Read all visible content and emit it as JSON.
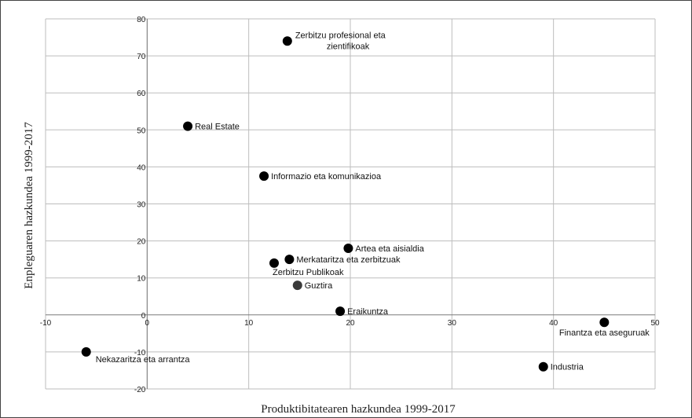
{
  "chart_data": {
    "type": "scatter",
    "xlabel": "Produktibitatearen hazkundea 1999-2017",
    "ylabel": "Enpleguaren hazkundea 1999-2017",
    "xlim": [
      -10,
      50
    ],
    "ylim": [
      -20,
      80
    ],
    "xticks": [
      -10,
      0,
      10,
      20,
      30,
      40,
      50
    ],
    "yticks": [
      -20,
      -10,
      0,
      10,
      20,
      30,
      40,
      50,
      60,
      70,
      80
    ],
    "grid": true,
    "colors": {
      "point": "#000000",
      "total_point": "#3a3a3a",
      "grid": "#bdbdbd"
    },
    "points": [
      {
        "label_lines": [
          "Zerbitzu profesional eta",
          "zientifikoak"
        ],
        "x": 13.8,
        "y": 74
      },
      {
        "label_lines": [
          "Real Estate"
        ],
        "x": 4,
        "y": 51
      },
      {
        "label_lines": [
          "Informazio eta komunikazioa"
        ],
        "x": 11.5,
        "y": 37.5
      },
      {
        "label_lines": [
          "Artea eta aisialdia"
        ],
        "x": 19.8,
        "y": 18
      },
      {
        "label_lines": [
          "Merkataritza eta zerbitzuak"
        ],
        "x": 14,
        "y": 15
      },
      {
        "label_lines": [
          "Zerbitzu Publikoak"
        ],
        "x": 12.5,
        "y": 14
      },
      {
        "label_lines": [
          "Guztira"
        ],
        "x": 14.8,
        "y": 8,
        "total": true
      },
      {
        "label_lines": [
          "Eraikuntza"
        ],
        "x": 19,
        "y": 1
      },
      {
        "label_lines": [
          "Finantza eta aseguruak"
        ],
        "x": 45,
        "y": -2
      },
      {
        "label_lines": [
          "Nekazaritza eta arrantza"
        ],
        "x": -6,
        "y": -10
      },
      {
        "label_lines": [
          "Industria"
        ],
        "x": 39,
        "y": -14
      }
    ]
  }
}
